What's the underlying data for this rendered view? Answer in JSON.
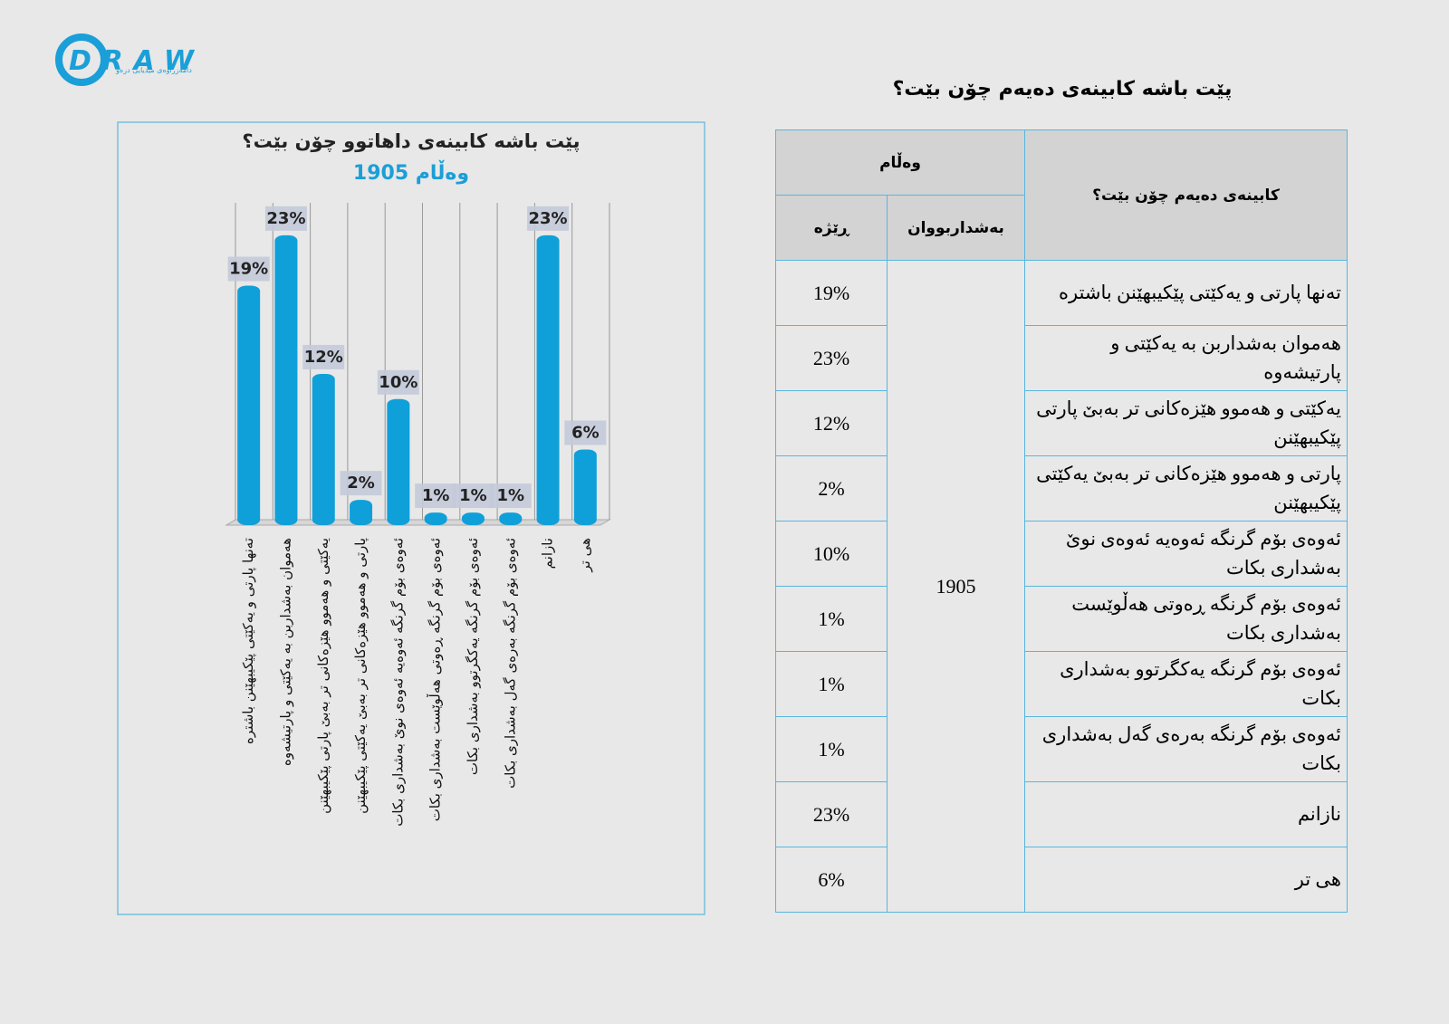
{
  "logo": {
    "name": "DRAW",
    "tagline": "دامەزراوەی میدیایی درەو"
  },
  "chart_data": {
    "type": "bar",
    "title": "پێت باشە کابینەی داهاتوو چۆن بێت؟",
    "subtitle": "1905 وەڵام",
    "categories": [
      "تەنها پارتی و یەکێتی پێکیبهێنن باشترە",
      "هەموان بەشداربن بە یەکێتی و پارتیشەوە",
      "یەکێتی و هەموو هێزەکانی تر بەبێ پارتی پێکیبهێنن",
      "پارتی و هەموو هێزەکانی تر بەبێ یەکێتی پێکیبهێنن",
      "ئەوەی بۆم گرنگە ئەوەیە ئەوەی نوێ بەشداری بکات",
      "ئەوەی بۆم گرنگە ڕەوتی هەڵوێست بەشداری بکات",
      "ئەوەی بۆم گرنگە یەکگرتوو بەشداری بکات",
      "ئەوەی بۆم گرنگە بەرەی گەل بەشداری بکات",
      "نازانم",
      "هی تر"
    ],
    "values": [
      19,
      23,
      12,
      2,
      10,
      1,
      1,
      1,
      23,
      6
    ],
    "value_labels": [
      "19%",
      "23%",
      "12%",
      "2%",
      "10%",
      "1%",
      "1%",
      "1%",
      "23%",
      "6%"
    ],
    "color": "#0fa0da",
    "ylim": [
      0,
      25
    ]
  },
  "table": {
    "title": "پێت باشە کابینەی دەیەم چۆن بێت؟",
    "header": {
      "question": "کابینەی دەیەم چۆن بێت؟",
      "answer": "وەڵام",
      "participants": "بەشداربووان",
      "share": "ڕێژە"
    },
    "participants": "1905",
    "rows": [
      [
        "تەنها پارتی و یەکێتی پێکیبهێنن باشترە",
        "19%"
      ],
      [
        "هەموان بەشداربن بە یەکێتی و پارتیشەوە",
        "23%"
      ],
      [
        "یەکێتی و هەموو هێزەکانی تر بەبێ پارتی پێکیبهێنن",
        "12%"
      ],
      [
        "پارتی و هەموو هێزەکانی تر بەبێ یەکێتی پێکیبهێنن",
        "2%"
      ],
      [
        "ئەوەی بۆم گرنگە ئەوەیە ئەوەی نوێ بەشداری بکات",
        "10%"
      ],
      [
        "ئەوەی بۆم گرنگە ڕەوتی هەڵوێست بەشداری بکات",
        "1%"
      ],
      [
        "ئەوەی بۆم گرنگە یەکگرتوو بەشداری بکات",
        "1%"
      ],
      [
        "ئەوەی بۆم گرنگە بەرەی گەل بەشداری بکات",
        "1%"
      ],
      [
        "نازانم",
        "23%"
      ],
      [
        "هی تر",
        "6%"
      ]
    ]
  }
}
